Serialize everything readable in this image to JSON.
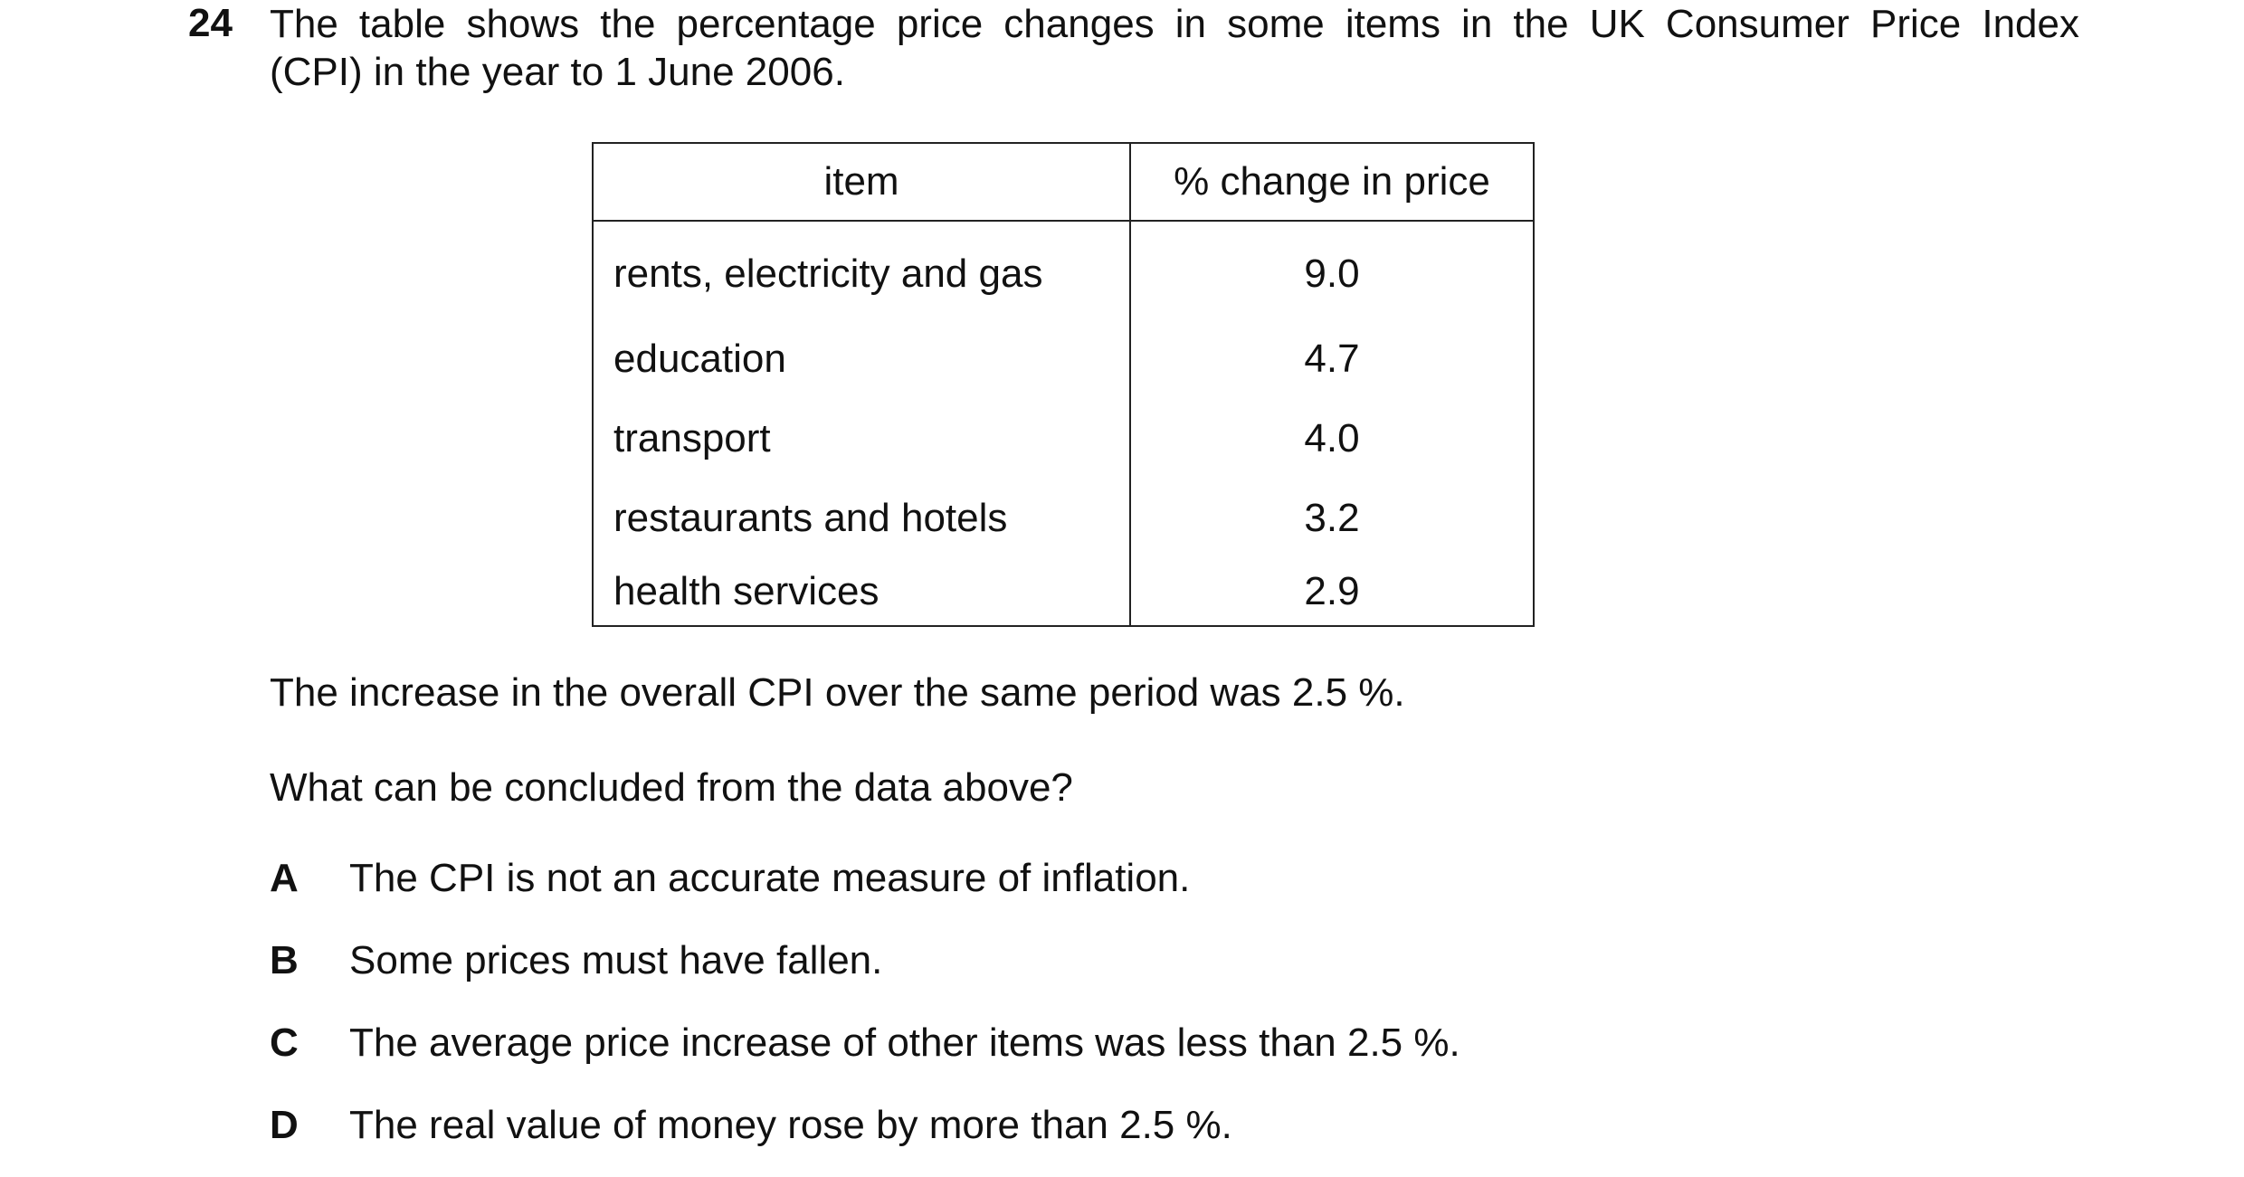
{
  "question": {
    "number": "24",
    "stem_line1": "The table shows the percentage price changes in some items in the UK Consumer Price Index",
    "stem_line2": "(CPI) in the year to 1 June 2006."
  },
  "table": {
    "headers": [
      "item",
      "% change in price"
    ],
    "rows": [
      {
        "item": "rents, electricity and gas",
        "change": "9.0"
      },
      {
        "item": "education",
        "change": "4.7"
      },
      {
        "item": "transport",
        "change": "4.0"
      },
      {
        "item": "restaurants and hotels",
        "change": "3.2"
      },
      {
        "item": "health services",
        "change": "2.9"
      }
    ]
  },
  "statement": "The increase in the overall CPI over the same period was 2.5 %.",
  "prompt": "What can be concluded from the data above?",
  "options": [
    {
      "letter": "A",
      "text": "The CPI is not an accurate measure of inflation."
    },
    {
      "letter": "B",
      "text": "Some prices must have fallen."
    },
    {
      "letter": "C",
      "text": "The average price increase of other items was less than 2.5 %."
    },
    {
      "letter": "D",
      "text": "The real value of money rose by more than 2.5 %."
    }
  ]
}
